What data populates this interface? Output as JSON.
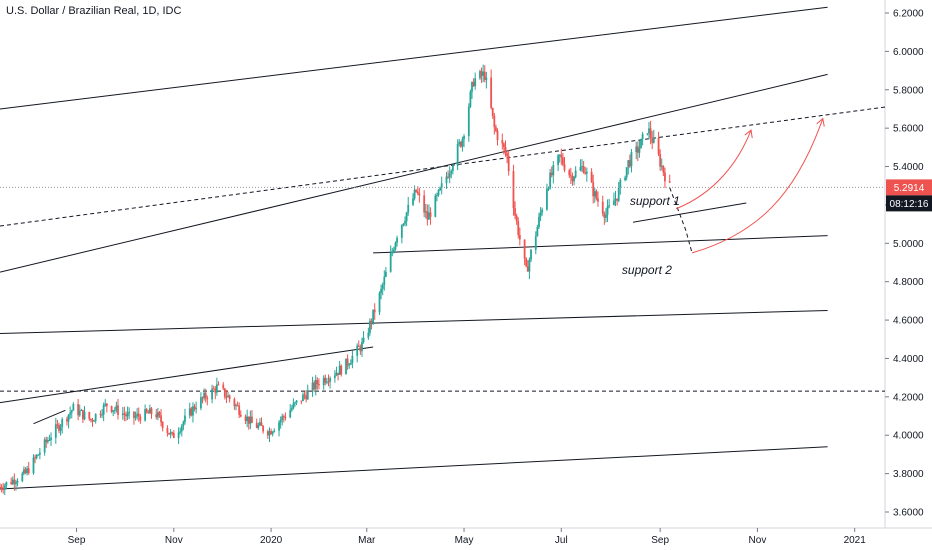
{
  "header": {
    "title": "U.S. Dollar / Brazilian Real, 1D, IDC"
  },
  "chart_data": {
    "type": "candlestick",
    "title": "U.S. Dollar / Brazilian Real, 1D, IDC",
    "x_tick_labels": [
      "Sep",
      "Nov",
      "2020",
      "Mar",
      "May",
      "Jul",
      "Sep",
      "Nov",
      "2021"
    ],
    "x_tick_dates": [
      "2019-09-01",
      "2019-11-01",
      "2020-01-01",
      "2020-03-01",
      "2020-05-01",
      "2020-07-01",
      "2020-09-01",
      "2020-11-01",
      "2021-01-01"
    ],
    "x_range": [
      "2019-07-15",
      "2021-01-20"
    ],
    "y_tick_labels": [
      "3.6000",
      "3.8000",
      "4.0000",
      "4.2000",
      "4.4000",
      "4.6000",
      "4.8000",
      "5.0000",
      "5.2000",
      "5.4000",
      "5.6000",
      "5.8000",
      "6.0000",
      "6.2000"
    ],
    "ylim": [
      3.55,
      6.25
    ],
    "grid": false,
    "current_price": {
      "label": "5.2914",
      "value": 5.2914
    },
    "countdown": "08:12:16",
    "colors": {
      "up": "#26a69a",
      "down": "#ef5350",
      "line": "#131722",
      "projection": "#ef5350",
      "tag_price": "#ef5350",
      "tag_time": "#131722"
    },
    "close_path": [
      [
        "2019-07-15",
        3.73
      ],
      [
        "2019-07-31",
        3.8
      ],
      [
        "2019-08-15",
        3.99
      ],
      [
        "2019-08-30",
        4.14
      ],
      [
        "2019-09-10",
        4.08
      ],
      [
        "2019-09-20",
        4.16
      ],
      [
        "2019-10-05",
        4.09
      ],
      [
        "2019-10-20",
        4.12
      ],
      [
        "2019-10-31",
        3.99
      ],
      [
        "2019-11-15",
        4.16
      ],
      [
        "2019-11-28",
        4.25
      ],
      [
        "2019-12-05",
        4.2
      ],
      [
        "2019-12-20",
        4.06
      ],
      [
        "2019-12-31",
        4.02
      ],
      [
        "2020-01-15",
        4.15
      ],
      [
        "2020-01-31",
        4.28
      ],
      [
        "2020-02-15",
        4.35
      ],
      [
        "2020-02-28",
        4.48
      ],
      [
        "2020-03-10",
        4.75
      ],
      [
        "2020-03-20",
        5.05
      ],
      [
        "2020-04-01",
        5.27
      ],
      [
        "2020-04-08",
        5.13
      ],
      [
        "2020-04-15",
        5.25
      ],
      [
        "2020-04-30",
        5.55
      ],
      [
        "2020-05-07",
        5.85
      ],
      [
        "2020-05-14",
        5.88
      ],
      [
        "2020-05-20",
        5.6
      ],
      [
        "2020-05-28",
        5.45
      ],
      [
        "2020-06-02",
        5.15
      ],
      [
        "2020-06-09",
        4.85
      ],
      [
        "2020-06-15",
        5.05
      ],
      [
        "2020-06-22",
        5.3
      ],
      [
        "2020-06-30",
        5.45
      ],
      [
        "2020-07-07",
        5.35
      ],
      [
        "2020-07-15",
        5.4
      ],
      [
        "2020-07-22",
        5.25
      ],
      [
        "2020-07-29",
        5.15
      ],
      [
        "2020-08-05",
        5.25
      ],
      [
        "2020-08-12",
        5.42
      ],
      [
        "2020-08-19",
        5.5
      ],
      [
        "2020-08-24",
        5.6
      ],
      [
        "2020-08-28",
        5.52
      ],
      [
        "2020-09-02",
        5.4
      ],
      [
        "2020-09-07",
        5.29
      ]
    ],
    "trendlines": [
      {
        "name": "channel-top",
        "style": "solid",
        "points": [
          [
            "2019-07-15",
            5.7
          ],
          [
            "2020-12-15",
            6.23
          ]
        ]
      },
      {
        "name": "channel-upper",
        "style": "solid",
        "points": [
          [
            "2019-07-15",
            4.85
          ],
          [
            "2020-12-15",
            5.88
          ]
        ]
      },
      {
        "name": "upper-dashed",
        "style": "dashed",
        "points": [
          [
            "2019-07-15",
            5.09
          ],
          [
            "2021-01-20",
            5.71
          ]
        ]
      },
      {
        "name": "support-1",
        "style": "solid",
        "points": [
          [
            "2020-08-15",
            5.11
          ],
          [
            "2020-10-25",
            5.21
          ]
        ]
      },
      {
        "name": "support-2",
        "style": "solid",
        "points": [
          [
            "2020-03-05",
            4.95
          ],
          [
            "2020-12-15",
            5.04
          ]
        ]
      },
      {
        "name": "mid-line",
        "style": "solid",
        "points": [
          [
            "2019-07-15",
            4.53
          ],
          [
            "2020-12-15",
            4.65
          ]
        ]
      },
      {
        "name": "lower-line",
        "style": "solid",
        "points": [
          [
            "2019-07-15",
            4.17
          ],
          [
            "2020-03-05",
            4.46
          ]
        ]
      },
      {
        "name": "horizontal-dashed",
        "style": "dashed",
        "points": [
          [
            "2019-07-15",
            4.23
          ],
          [
            "2021-01-20",
            4.23
          ]
        ]
      },
      {
        "name": "channel-bottom",
        "style": "solid",
        "points": [
          [
            "2019-07-15",
            3.72
          ],
          [
            "2020-12-15",
            3.94
          ]
        ]
      },
      {
        "name": "lower-support-seg",
        "style": "solid",
        "points": [
          [
            "2019-08-05",
            4.06
          ],
          [
            "2019-08-25",
            4.13
          ]
        ]
      }
    ],
    "annotations": [
      {
        "text": "support 1",
        "x": "2020-08-13",
        "y": 5.2
      },
      {
        "text": "support 2",
        "x": "2020-08-08",
        "y": 4.84
      }
    ],
    "projection_path": [
      [
        "2020-09-07",
        5.29
      ],
      [
        "2020-09-17",
        5.07
      ],
      [
        "2020-09-21",
        4.95
      ]
    ],
    "projection_arrows": [
      {
        "points": [
          [
            "2020-09-11",
            5.18
          ],
          [
            "2020-10-05",
            5.26
          ],
          [
            "2020-10-20",
            5.42
          ],
          [
            "2020-10-28",
            5.59
          ]
        ]
      },
      {
        "points": [
          [
            "2020-09-21",
            4.95
          ],
          [
            "2020-11-01",
            5.05
          ],
          [
            "2020-11-25",
            5.25
          ],
          [
            "2020-12-12",
            5.65
          ]
        ]
      }
    ]
  }
}
